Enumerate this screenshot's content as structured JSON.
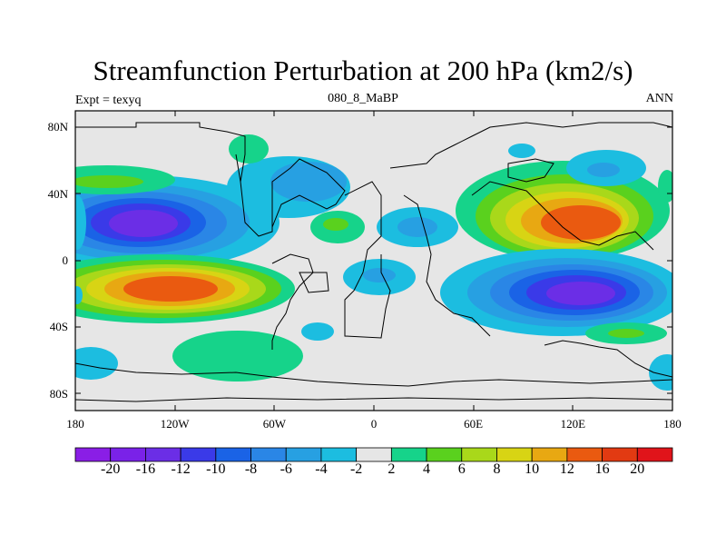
{
  "title": "Streamfunction Perturbation at 200 hPa (km2/s)",
  "subtitle_left": "Expt = texyq",
  "subtitle_center": "080_8_MaBP",
  "subtitle_right": "ANN",
  "map": {
    "lat_ticks": [
      "80N",
      "40N",
      "0",
      "40S",
      "80S"
    ],
    "lon_ticks": [
      "180",
      "120W",
      "60W",
      "0",
      "60E",
      "120E",
      "180"
    ],
    "lat_values": [
      80,
      40,
      0,
      -40,
      -80
    ],
    "lon_values": [
      -180,
      -120,
      -60,
      0,
      60,
      120,
      180
    ],
    "lon_range": [
      -180,
      180
    ],
    "lat_range": [
      -90,
      90
    ],
    "background_color": "#e6e6e6"
  },
  "colorbar": {
    "labels": [
      "-20",
      "-16",
      "-12",
      "-10",
      "-8",
      "-6",
      "-4",
      "-2",
      "2",
      "4",
      "6",
      "8",
      "10",
      "12",
      "16",
      "20"
    ],
    "colors": [
      "#8a1ee6",
      "#7a22e8",
      "#6b2ee6",
      "#3a3ae8",
      "#1a63e6",
      "#2a86e6",
      "#27a0e2",
      "#1cbde0",
      "#e6e6e6",
      "#16d38a",
      "#5ad11e",
      "#a9d81a",
      "#d8d414",
      "#e8a812",
      "#ea5a10",
      "#e23a12",
      "#e0141a"
    ]
  },
  "features": [
    {
      "name": "north-pacific-low",
      "value": -20,
      "lon": -130,
      "lat": 20
    },
    {
      "name": "south-pacific-high",
      "value": 16,
      "lon": -125,
      "lat": -18
    },
    {
      "name": "asia-high",
      "value": 16,
      "lon": 120,
      "lat": 22
    },
    {
      "name": "south-indian-low",
      "value": -20,
      "lon": 122,
      "lat": -20
    },
    {
      "name": "north-africa-low",
      "value": -6,
      "lon": -20,
      "lat": 30
    },
    {
      "name": "arctic-low",
      "value": -4,
      "lon": 120,
      "lat": 55
    }
  ]
}
